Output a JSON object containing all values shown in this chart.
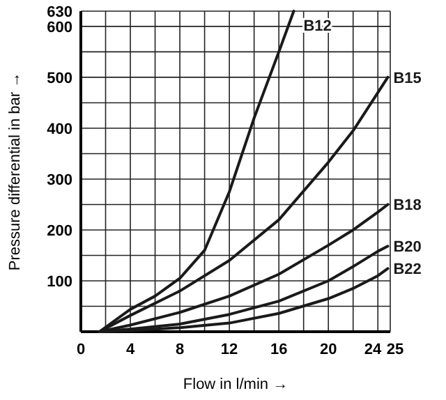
{
  "chart_data": {
    "type": "line",
    "xlabel": "Flow in l/min →",
    "ylabel": "Pressure differential in bar →",
    "xlim": [
      0,
      25
    ],
    "ylim": [
      0,
      630
    ],
    "xticks": [
      0,
      {
        "value": 2,
        "label": null
      },
      4,
      {
        "value": 6,
        "label": null
      },
      8,
      {
        "value": 10,
        "label": null
      },
      12,
      {
        "value": 14,
        "label": null
      },
      16,
      {
        "value": 18,
        "label": null
      },
      20,
      {
        "value": 22,
        "label": null
      },
      24,
      25
    ],
    "yticks": [
      {
        "value": 50,
        "label": null
      },
      100,
      {
        "value": 150,
        "label": null
      },
      200,
      {
        "value": 250,
        "label": null
      },
      300,
      {
        "value": 350,
        "label": null
      },
      400,
      {
        "value": 450,
        "label": null
      },
      500,
      {
        "value": 550,
        "label": null
      },
      600,
      630
    ],
    "grid": true,
    "marker": "none",
    "line_style": "solid",
    "series": [
      {
        "name": "B12",
        "color": "#1a1a1a",
        "x": [
          1.5,
          4,
          6,
          8,
          10,
          12,
          14,
          16,
          17.2
        ],
        "values": [
          0,
          44,
          70,
          105,
          160,
          275,
          420,
          550,
          630
        ]
      },
      {
        "name": "B15",
        "color": "#1a1a1a",
        "x": [
          1.5,
          4,
          8,
          12,
          16,
          20,
          22,
          24,
          24.8
        ],
        "values": [
          0,
          32,
          80,
          140,
          220,
          333,
          395,
          470,
          500
        ]
      },
      {
        "name": "B18",
        "color": "#1a1a1a",
        "x": [
          1.5,
          4,
          8,
          12,
          16,
          20,
          22,
          24,
          24.8
        ],
        "values": [
          0,
          13,
          38,
          70,
          113,
          170,
          200,
          235,
          250
        ]
      },
      {
        "name": "B20",
        "color": "#1a1a1a",
        "x": [
          1.5,
          4,
          8,
          12,
          16,
          20,
          22,
          24,
          24.8
        ],
        "values": [
          0,
          5,
          15,
          34,
          60,
          100,
          128,
          158,
          168
        ]
      },
      {
        "name": "B22",
        "color": "#1a1a1a",
        "x": [
          1.5,
          4,
          8,
          12,
          16,
          20,
          22,
          24,
          24.8
        ],
        "values": [
          0,
          2,
          8,
          17,
          36,
          65,
          85,
          110,
          124
        ]
      }
    ]
  }
}
